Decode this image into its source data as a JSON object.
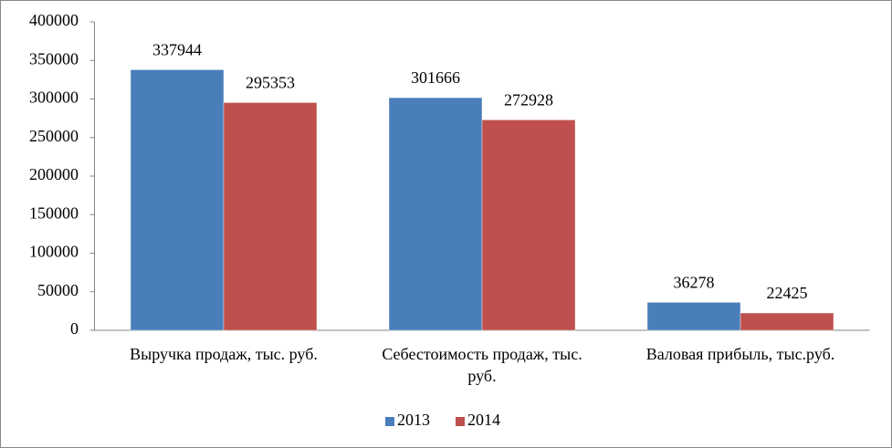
{
  "chart_data": {
    "type": "bar",
    "categories": [
      "Выручка продаж, тыс.  руб.",
      "Себестоимость продаж, тыс. руб.",
      "Валовая прибыль,  тыс.руб."
    ],
    "series": [
      {
        "name": "2013",
        "color": "#4a7ebb",
        "values": [
          337944,
          301666,
          36278
        ]
      },
      {
        "name": "2014",
        "color": "#c0504d",
        "values": [
          295353,
          272928,
          22425
        ]
      }
    ],
    "ylim": [
      0,
      400000
    ],
    "yticks": [
      0,
      50000,
      100000,
      150000,
      200000,
      250000,
      300000,
      350000,
      400000
    ],
    "grid": false,
    "legend": "bottom"
  }
}
